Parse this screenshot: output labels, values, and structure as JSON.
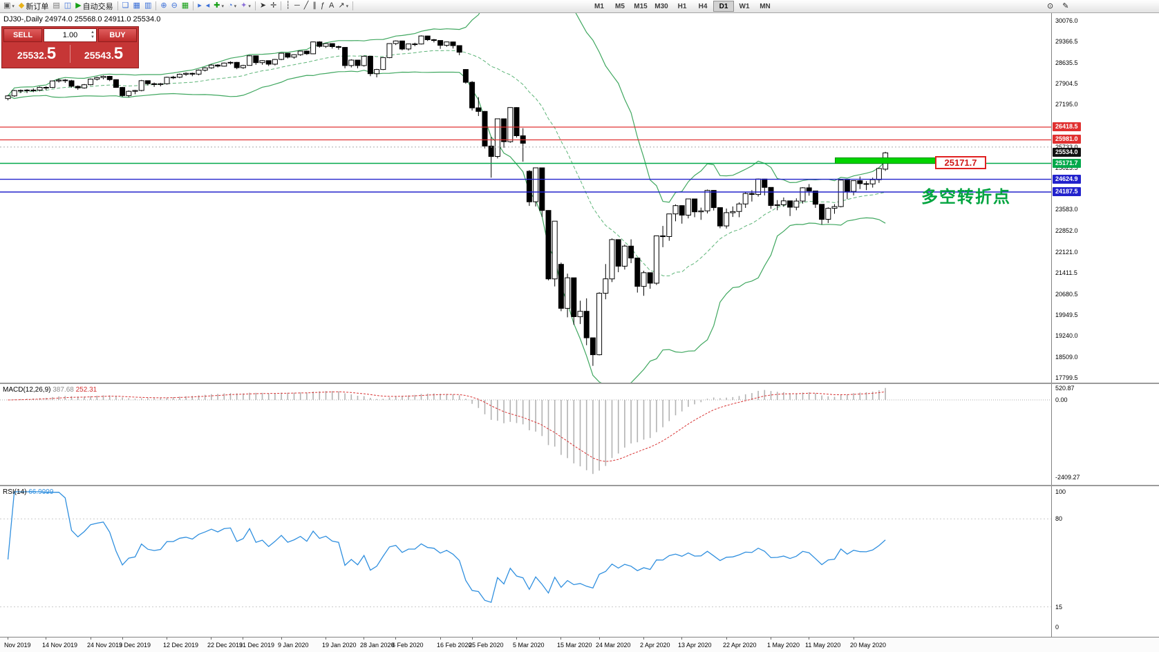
{
  "toolbar": {
    "left_items": [
      {
        "name": "chart-window-button",
        "glyph": "▣",
        "color": "#5a5a5a",
        "dropdown": true
      },
      {
        "name": "new-order-button",
        "glyph": "◆",
        "color": "#e8b21a",
        "label": "新订单"
      },
      {
        "name": "chart-profile-button",
        "glyph": "▤",
        "color": "#7a7a7a"
      },
      {
        "name": "market-watch-button",
        "glyph": "◫",
        "color": "#3a6fd8"
      },
      {
        "name": "auto-trading-button",
        "glyph": "▶",
        "color": "#16a016",
        "label": "自动交易"
      },
      {
        "sep": true
      },
      {
        "name": "cascade-windows-button",
        "glyph": "❏",
        "color": "#3a6fd8"
      },
      {
        "name": "tile-horizontal-button",
        "glyph": "▦",
        "color": "#3a6fd8"
      },
      {
        "name": "tile-vertical-button",
        "glyph": "▥",
        "color": "#3a6fd8"
      },
      {
        "sep": true
      },
      {
        "name": "zoom-in-button",
        "glyph": "⊕",
        "color": "#3a6fd8"
      },
      {
        "name": "zoom-out-button",
        "glyph": "⊖",
        "color": "#3a6fd8"
      },
      {
        "name": "grid-button",
        "glyph": "▦",
        "color": "#16a016"
      },
      {
        "sep": true
      },
      {
        "name": "auto-scroll-button",
        "glyph": "▸",
        "color": "#3a6fd8"
      },
      {
        "name": "chart-shift-button",
        "glyph": "◂",
        "color": "#3a6fd8"
      },
      {
        "name": "add-indicator-button",
        "glyph": "✚",
        "color": "#16a016",
        "dropdown": true
      },
      {
        "name": "periods-button",
        "glyph": "◔",
        "color": "#3a6fd8",
        "dropdown": true
      },
      {
        "name": "template-button",
        "glyph": "✦",
        "color": "#8a6fd8",
        "dropdown": true
      },
      {
        "sep": true
      },
      {
        "name": "cursor-button",
        "glyph": "➤",
        "color": "#333333"
      },
      {
        "name": "crosshair-button",
        "glyph": "✛",
        "color": "#333333"
      },
      {
        "sep": true
      },
      {
        "name": "vertical-line-button",
        "glyph": "┆",
        "color": "#333333"
      },
      {
        "name": "horizontal-line-button",
        "glyph": "─",
        "color": "#333333"
      },
      {
        "name": "trendline-button",
        "glyph": "╱",
        "color": "#333333"
      },
      {
        "name": "channel-button",
        "glyph": "∥",
        "color": "#333333"
      },
      {
        "name": "fibonacci-button",
        "glyph": "ƒ",
        "color": "#333333"
      },
      {
        "name": "text-button",
        "glyph": "A",
        "color": "#333333"
      },
      {
        "name": "arrows-button",
        "glyph": "↗",
        "color": "#333333",
        "dropdown": true
      },
      {
        "sep": true
      }
    ],
    "timeframes": [
      "M1",
      "M5",
      "M15",
      "M30",
      "H1",
      "H4",
      "D1",
      "W1",
      "MN"
    ],
    "active_timeframe": "D1",
    "right_items": [
      {
        "name": "search-button",
        "glyph": "⊙"
      },
      {
        "name": "edit-button",
        "glyph": "✎"
      }
    ]
  },
  "chart_header": {
    "symbol_text": "DJ30-,Daily",
    "ohlc_text": "24974.0 25568.0 24911.0 25534.0"
  },
  "trade_panel": {
    "sell_label": "SELL",
    "buy_label": "BUY",
    "lot": "1.00",
    "sell_price_pre": "25532.",
    "sell_price_big": "5",
    "buy_price_pre": "25543.",
    "buy_price_big": "5"
  },
  "price_scale": {
    "ticks": [
      "30076.0",
      "29366.5",
      "28635.5",
      "27904.5",
      "27195.0",
      "25733.0",
      "25023.5",
      "23583.0",
      "22852.0",
      "22121.0",
      "21411.5",
      "20680.5",
      "19949.5",
      "19240.0",
      "18509.0",
      "17799.5"
    ],
    "badges": [
      {
        "label": "26418.5",
        "bg": "#e03030"
      },
      {
        "label": "25981.0",
        "bg": "#e03030"
      },
      {
        "label": "25534.0",
        "bg": "#111111"
      },
      {
        "label": "25171.7",
        "bg": "#00a84a"
      },
      {
        "label": "24624.9",
        "bg": "#2222cc"
      },
      {
        "label": "24187.5",
        "bg": "#2222cc"
      }
    ]
  },
  "annotations": {
    "level_callout": "25171.7",
    "note_text": "多空转折点",
    "note_color": "#00a43f",
    "highlight_color": "#00d400"
  },
  "macd_panel": {
    "name": "MACD(12,26,9)",
    "main_value": "387.68",
    "signal_value": "252.31",
    "scale": [
      {
        "label": "520.87",
        "v": 520.87
      },
      {
        "label": "0.00",
        "v": 0
      },
      {
        "label": "-2409.27",
        "v": -2409.27
      }
    ]
  },
  "rsi_panel": {
    "name": "RSI(14)",
    "value": "66.9999",
    "scale": [
      {
        "label": "100",
        "v": 100
      },
      {
        "label": "80",
        "v": 80
      },
      {
        "label": "15",
        "v": 15
      },
      {
        "label": "0",
        "v": 0
      }
    ],
    "levels": [
      80,
      15
    ]
  },
  "chart_data": {
    "type": "candlestick",
    "symbol": "DJ30-",
    "timeframe": "Daily",
    "last_ohlc": {
      "open": 24974.0,
      "high": 25568.0,
      "low": 24911.0,
      "close": 25534.0
    },
    "y_axis": {
      "top_price": 30076.0,
      "bottom_price": 17799.5
    },
    "indicators": [
      {
        "name": "Bollinger Bands",
        "period": 20,
        "deviation": 2,
        "color": "#3fa75f"
      },
      {
        "name": "MACD",
        "params": [
          12,
          26,
          9
        ],
        "histogram_color": "#b2b2b2",
        "signal_color": "#d83232"
      },
      {
        "name": "RSI",
        "period": 14,
        "color": "#2f8fdf"
      }
    ],
    "levels": [
      {
        "price": 26418.5,
        "color": "#e03030",
        "style": "solid",
        "width": 1.2
      },
      {
        "price": 25981.0,
        "color": "#e03030",
        "style": "solid",
        "width": 1.2
      },
      {
        "price": 25733.0,
        "color": "#aaaaaa",
        "style": "dotted",
        "width": 1
      },
      {
        "price": 25171.7,
        "color": "#00a84a",
        "style": "solid",
        "width": 1.4
      },
      {
        "price": 24624.9,
        "color": "#2222cc",
        "style": "solid",
        "width": 1.4
      },
      {
        "price": 24187.5,
        "color": "#2222cc",
        "style": "solid",
        "width": 1.4
      }
    ],
    "x_labels": [
      {
        "label": "Nov 2019",
        "i": 0
      },
      {
        "label": "14 Nov 2019",
        "i": 6
      },
      {
        "label": "24 Nov 2019",
        "i": 13
      },
      {
        "label": "3 Dec 2019",
        "i": 18
      },
      {
        "label": "12 Dec 2019",
        "i": 25
      },
      {
        "label": "22 Dec 2019",
        "i": 32
      },
      {
        "label": "31 Dec 2019",
        "i": 37
      },
      {
        "label": "9 Jan 2020",
        "i": 43
      },
      {
        "label": "19 Jan 2020",
        "i": 50
      },
      {
        "label": "28 Jan 2020",
        "i": 56
      },
      {
        "label": "6 Feb 2020",
        "i": 61
      },
      {
        "label": "16 Feb 2020",
        "i": 68
      },
      {
        "label": "25 Feb 2020",
        "i": 73
      },
      {
        "label": "5 Mar 2020",
        "i": 80
      },
      {
        "label": "15 Mar 2020",
        "i": 87
      },
      {
        "label": "24 Mar 2020",
        "i": 93
      },
      {
        "label": "2 Apr 2020",
        "i": 100
      },
      {
        "label": "13 Apr 2020",
        "i": 106
      },
      {
        "label": "22 Apr 2020",
        "i": 113
      },
      {
        "label": "1 May 2020",
        "i": 120
      },
      {
        "label": "11 May 2020",
        "i": 126
      },
      {
        "label": "20 May 2020",
        "i": 133
      }
    ],
    "candles": [
      [
        27400,
        27520,
        27340,
        27493
      ],
      [
        27493,
        27700,
        27460,
        27675
      ],
      [
        27675,
        27710,
        27590,
        27681
      ],
      [
        27681,
        27720,
        27590,
        27691
      ],
      [
        27691,
        27750,
        27620,
        27692
      ],
      [
        27692,
        27810,
        27650,
        27784
      ],
      [
        27784,
        27820,
        27690,
        27782
      ],
      [
        27782,
        28020,
        27760,
        28005
      ],
      [
        28005,
        28090,
        27950,
        28036
      ],
      [
        28036,
        28070,
        27940,
        28012
      ],
      [
        28012,
        28040,
        27780,
        27821
      ],
      [
        27821,
        27850,
        27700,
        27766
      ],
      [
        27766,
        27900,
        27740,
        27875
      ],
      [
        27875,
        28090,
        27850,
        28066
      ],
      [
        28066,
        28150,
        28020,
        28121
      ],
      [
        28121,
        28190,
        28060,
        28164
      ],
      [
        28164,
        28180,
        28000,
        28051
      ],
      [
        28051,
        28060,
        27770,
        27783
      ],
      [
        27783,
        27800,
        27460,
        27503
      ],
      [
        27503,
        27680,
        27450,
        27650
      ],
      [
        27650,
        27700,
        27550,
        27678
      ],
      [
        27678,
        28040,
        27650,
        28015
      ],
      [
        28015,
        28020,
        27850,
        27910
      ],
      [
        27910,
        27950,
        27800,
        27882
      ],
      [
        27882,
        27940,
        27820,
        27911
      ],
      [
        27911,
        28150,
        27880,
        28132
      ],
      [
        28132,
        28180,
        28070,
        28135
      ],
      [
        28135,
        28260,
        28100,
        28236
      ],
      [
        28236,
        28300,
        28180,
        28267
      ],
      [
        28267,
        28290,
        28170,
        28239
      ],
      [
        28239,
        28400,
        28200,
        28377
      ],
      [
        28377,
        28480,
        28330,
        28455
      ],
      [
        28455,
        28580,
        28420,
        28551
      ],
      [
        28551,
        28580,
        28470,
        28515
      ],
      [
        28515,
        28640,
        28500,
        28621
      ],
      [
        28621,
        28680,
        28570,
        28645
      ],
      [
        28645,
        28660,
        28410,
        28462
      ],
      [
        28462,
        28560,
        28420,
        28538
      ],
      [
        28538,
        28890,
        28530,
        28869
      ],
      [
        28869,
        28880,
        28560,
        28635
      ],
      [
        28635,
        28720,
        28560,
        28704
      ],
      [
        28704,
        28710,
        28520,
        28584
      ],
      [
        28584,
        28760,
        28540,
        28745
      ],
      [
        28745,
        28970,
        28720,
        28957
      ],
      [
        28957,
        28960,
        28780,
        28824
      ],
      [
        28824,
        28920,
        28770,
        28907
      ],
      [
        28907,
        29040,
        28870,
        29031
      ],
      [
        29031,
        29050,
        28900,
        28940
      ],
      [
        28940,
        29360,
        28930,
        29348
      ],
      [
        29348,
        29370,
        29150,
        29196
      ],
      [
        29196,
        29300,
        29140,
        29290
      ],
      [
        29290,
        29300,
        29120,
        29186
      ],
      [
        29186,
        29220,
        29080,
        29160
      ],
      [
        29160,
        29170,
        28440,
        28536
      ],
      [
        28536,
        28750,
        28470,
        28723
      ],
      [
        28723,
        28730,
        28440,
        28535
      ],
      [
        28535,
        28870,
        28500,
        28856
      ],
      [
        28856,
        28860,
        28170,
        28256
      ],
      [
        28256,
        28420,
        28130,
        28400
      ],
      [
        28400,
        28820,
        28380,
        28808
      ],
      [
        28808,
        29300,
        28790,
        29291
      ],
      [
        29291,
        29400,
        29240,
        29380
      ],
      [
        29380,
        29390,
        29060,
        29103
      ],
      [
        29103,
        29290,
        29050,
        29277
      ],
      [
        29277,
        29320,
        29200,
        29276
      ],
      [
        29276,
        29570,
        29260,
        29551
      ],
      [
        29551,
        29560,
        29380,
        29423
      ],
      [
        29423,
        29450,
        29330,
        29398
      ],
      [
        29398,
        29400,
        29110,
        29232
      ],
      [
        29232,
        29360,
        29180,
        29348
      ],
      [
        29348,
        29360,
        29120,
        29220
      ],
      [
        29220,
        29230,
        28890,
        28992
      ],
      [
        28400,
        28410,
        27910,
        27961
      ],
      [
        27961,
        28000,
        26990,
        27081
      ],
      [
        27081,
        27450,
        26800,
        26958
      ],
      [
        26958,
        26970,
        25690,
        25767
      ],
      [
        25767,
        26080,
        24680,
        25409
      ],
      [
        25409,
        26710,
        25340,
        26703
      ],
      [
        26703,
        26710,
        25710,
        25917
      ],
      [
        25917,
        27100,
        25880,
        27090
      ],
      [
        27090,
        27100,
        26060,
        26121
      ],
      [
        26121,
        26380,
        25230,
        25865
      ],
      [
        24900,
        24940,
        23710,
        23851
      ],
      [
        23851,
        25020,
        23690,
        25018
      ],
      [
        25018,
        25030,
        23330,
        23553
      ],
      [
        23553,
        23560,
        21150,
        21200
      ],
      [
        21200,
        23190,
        20940,
        23186
      ],
      [
        21700,
        21760,
        20090,
        20188
      ],
      [
        20188,
        21380,
        19880,
        21237
      ],
      [
        21237,
        21240,
        19620,
        19899
      ],
      [
        19899,
        20450,
        19650,
        20087
      ],
      [
        20087,
        20530,
        18920,
        19174
      ],
      [
        19174,
        19180,
        18210,
        18592
      ],
      [
        18592,
        20740,
        18570,
        20705
      ],
      [
        20705,
        21710,
        20500,
        21201
      ],
      [
        21201,
        22590,
        21090,
        22552
      ],
      [
        22552,
        22560,
        21430,
        21637
      ],
      [
        21637,
        22380,
        21520,
        22327
      ],
      [
        22327,
        22560,
        21740,
        21917
      ],
      [
        21917,
        21920,
        20730,
        20944
      ],
      [
        20944,
        21480,
        20620,
        21413
      ],
      [
        21413,
        21420,
        20860,
        21053
      ],
      [
        21053,
        22690,
        20990,
        22680
      ],
      [
        22680,
        23020,
        22290,
        22654
      ],
      [
        22654,
        23440,
        22510,
        23434
      ],
      [
        23434,
        23760,
        23180,
        23719
      ],
      [
        23719,
        23730,
        23100,
        23391
      ],
      [
        23391,
        23960,
        23280,
        23950
      ],
      [
        23950,
        23960,
        23320,
        23505
      ],
      [
        23505,
        23650,
        23230,
        23538
      ],
      [
        23538,
        24270,
        23450,
        24242
      ],
      [
        24242,
        24250,
        23550,
        23651
      ],
      [
        23651,
        23660,
        22940,
        23019
      ],
      [
        23019,
        23620,
        22930,
        23476
      ],
      [
        23476,
        23690,
        23330,
        23516
      ],
      [
        23516,
        23830,
        23320,
        23775
      ],
      [
        23775,
        24180,
        23640,
        24134
      ],
      [
        24134,
        24250,
        23860,
        24102
      ],
      [
        24102,
        24650,
        24030,
        24634
      ],
      [
        24634,
        24640,
        24070,
        24346
      ],
      [
        24346,
        24350,
        23610,
        23724
      ],
      [
        23724,
        23910,
        23560,
        23750
      ],
      [
        23750,
        24000,
        23680,
        23883
      ],
      [
        23883,
        23890,
        23360,
        23665
      ],
      [
        23665,
        23970,
        23560,
        23876
      ],
      [
        23876,
        24350,
        23790,
        24331
      ],
      [
        24331,
        24460,
        24060,
        24222
      ],
      [
        24222,
        24230,
        23640,
        23765
      ],
      [
        23765,
        23770,
        23070,
        23248
      ],
      [
        23248,
        23660,
        23120,
        23626
      ],
      [
        23626,
        23770,
        23440,
        23686
      ],
      [
        23686,
        24610,
        23660,
        24598
      ],
      [
        24598,
        24600,
        23940,
        24207
      ],
      [
        24207,
        24580,
        24070,
        24576
      ],
      [
        24576,
        24720,
        24290,
        24475
      ],
      [
        24475,
        24560,
        24250,
        24466
      ],
      [
        24466,
        24680,
        24340,
        24610
      ],
      [
        24610,
        25010,
        24500,
        24996
      ],
      [
        24974,
        25568,
        24911,
        25534
      ]
    ]
  }
}
